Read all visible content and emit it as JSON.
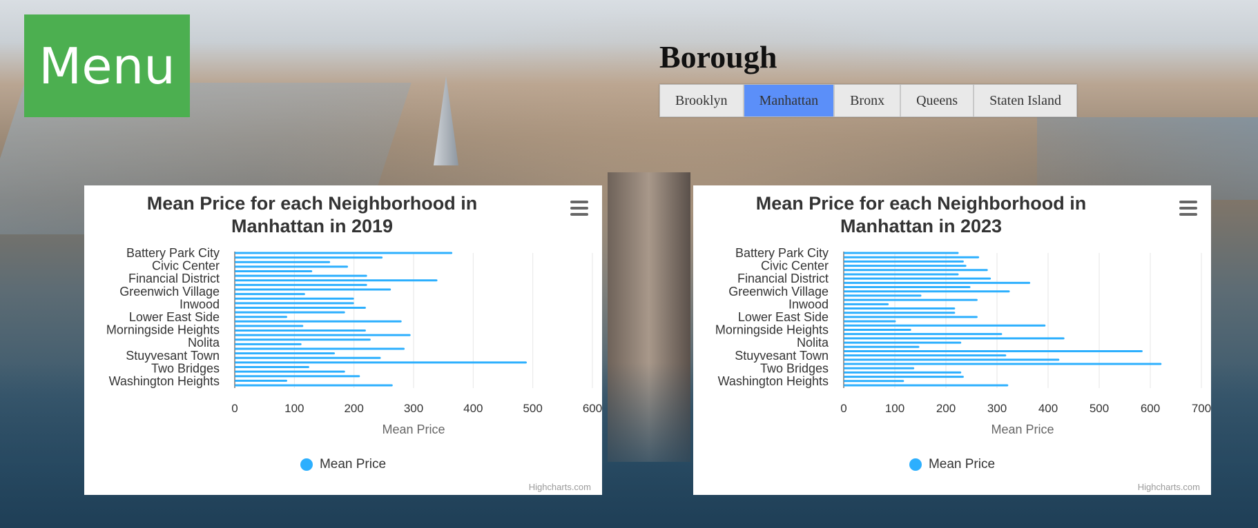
{
  "menu": {
    "label": "Menu"
  },
  "borough": {
    "title": "Borough",
    "tabs": [
      "Brooklyn",
      "Manhattan",
      "Bronx",
      "Queens",
      "Staten Island"
    ],
    "active": "Manhattan"
  },
  "colors": {
    "accent_green": "#4caf50",
    "active_tab": "#5b8ff9",
    "series": "#2caffe"
  },
  "charts": [
    {
      "title": "Mean Price for each Neighborhood in Manhattan in 2019",
      "credits": "Highcharts.com",
      "menu_icon": "hamburger-icon"
    },
    {
      "title": "Mean Price for each Neighborhood in Manhattan in 2023",
      "credits": "Highcharts.com",
      "menu_icon": "hamburger-icon"
    }
  ],
  "chart_data": [
    {
      "type": "bar",
      "title": "Mean Price for each Neighborhood in Manhattan in 2019",
      "xlabel": "",
      "ylabel": "Mean Price",
      "ylim": [
        0,
        600
      ],
      "y_ticks": [
        0,
        100,
        200,
        300,
        400,
        500,
        600
      ],
      "visible_category_labels": [
        "Battery Park City",
        "Civic Center",
        "Financial District",
        "Greenwich Village",
        "Inwood",
        "Lower East Side",
        "Morningside Heights",
        "Nolita",
        "Stuyvesant Town",
        "Two Bridges",
        "Washington Heights"
      ],
      "grid": true,
      "legend": "bottom-center",
      "series": [
        {
          "name": "Mean Price",
          "color": "#2caffe",
          "values": [
            365,
            248,
            160,
            190,
            130,
            222,
            340,
            222,
            262,
            118,
            200,
            200,
            220,
            185,
            88,
            280,
            115,
            220,
            295,
            228,
            112,
            285,
            168,
            245,
            490,
            125,
            185,
            210,
            88,
            265
          ]
        }
      ]
    },
    {
      "type": "bar",
      "title": "Mean Price for each Neighborhood in Manhattan in 2023",
      "xlabel": "",
      "ylabel": "Mean Price",
      "ylim": [
        0,
        700
      ],
      "y_ticks": [
        0,
        100,
        200,
        300,
        400,
        500,
        600,
        700
      ],
      "visible_category_labels": [
        "Battery Park City",
        "Civic Center",
        "Financial District",
        "Greenwich Village",
        "Inwood",
        "Lower East Side",
        "Morningside Heights",
        "Nolita",
        "Stuyvesant Town",
        "Two Bridges",
        "Washington Heights"
      ],
      "grid": true,
      "legend": "bottom-center",
      "series": [
        {
          "name": "Mean Price",
          "color": "#2caffe",
          "values": [
            225,
            265,
            235,
            240,
            282,
            225,
            288,
            365,
            248,
            325,
            152,
            262,
            88,
            218,
            218,
            262,
            102,
            395,
            132,
            310,
            432,
            230,
            148,
            585,
            318,
            422,
            622,
            138,
            230,
            235,
            118,
            322
          ]
        }
      ]
    }
  ]
}
